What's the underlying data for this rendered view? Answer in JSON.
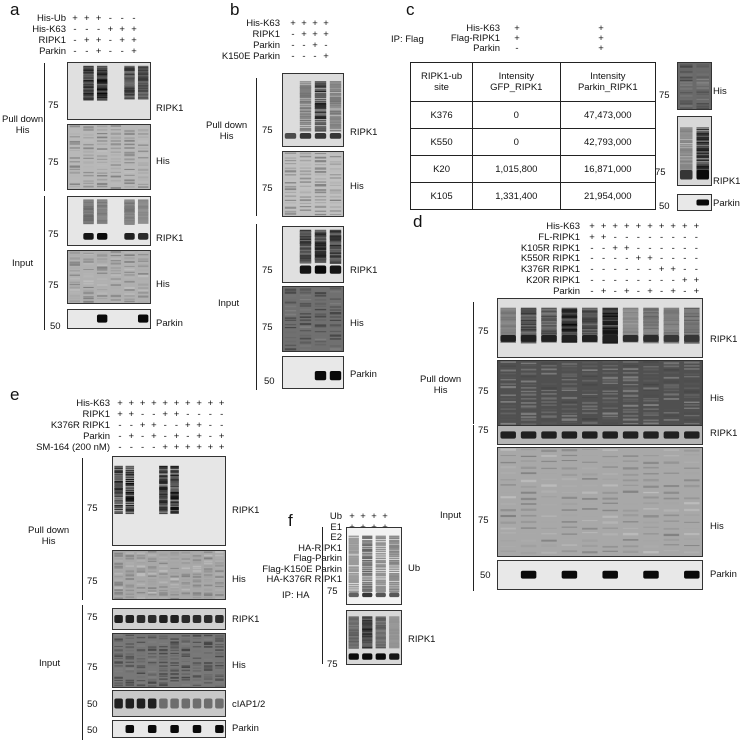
{
  "panels": {
    "a": {
      "letter": "a",
      "conditions": [
        {
          "label": "His-Ub",
          "signs": [
            "+",
            "+",
            "+",
            "-",
            "-",
            "-"
          ]
        },
        {
          "label": "His-K63",
          "signs": [
            "-",
            "-",
            "-",
            "+",
            "+",
            "+"
          ]
        },
        {
          "label": "RIPK1",
          "signs": [
            "-",
            "+",
            "+",
            "-",
            "+",
            "+"
          ]
        },
        {
          "label": "Parkin",
          "signs": [
            "-",
            "-",
            "+",
            "-",
            "-",
            "+"
          ]
        }
      ],
      "group_pulldown": "Pull down\nHis",
      "group_input": "Input",
      "blots": [
        "RIPK1",
        "His",
        "RIPK1",
        "His",
        "Parkin"
      ],
      "mw": [
        "75",
        "75",
        "75",
        "75",
        "50"
      ]
    },
    "b": {
      "letter": "b",
      "conditions": [
        {
          "label": "His-K63",
          "signs": [
            "+",
            "+",
            "+",
            "+"
          ]
        },
        {
          "label": "RIPK1",
          "signs": [
            "-",
            "+",
            "+",
            "+"
          ]
        },
        {
          "label": "Parkin",
          "signs": [
            "-",
            "-",
            "+",
            "-"
          ]
        },
        {
          "label": "K150E Parkin",
          "signs": [
            "-",
            "-",
            "-",
            "+"
          ]
        }
      ],
      "group_pulldown": "Pull down\nHis",
      "group_input": "Input",
      "blots": [
        "RIPK1",
        "His",
        "RIPK1",
        "His",
        "Parkin"
      ],
      "mw": [
        "75",
        "75",
        "75",
        "75",
        "50"
      ]
    },
    "c": {
      "letter": "c",
      "ip": "IP: Flag",
      "conditions": [
        {
          "label": "His-K63",
          "signs": [
            "+",
            "+"
          ]
        },
        {
          "label": "Flag-RIPK1",
          "signs": [
            "+",
            "+"
          ]
        },
        {
          "label": "Parkin",
          "signs": [
            "-",
            "+"
          ]
        }
      ],
      "table": {
        "headers": [
          "RIPK1-ub\nsite",
          "Intensity\nGFP_RIPK1",
          "Intensity\nParkin_RIPK1"
        ],
        "rows": [
          [
            "K376",
            "0",
            "47,473,000"
          ],
          [
            "K550",
            "0",
            "42,793,000"
          ],
          [
            "K20",
            "1,015,800",
            "16,871,000"
          ],
          [
            "K105",
            "1,331,400",
            "21,954,000"
          ]
        ]
      },
      "blots": [
        "His",
        "RIPK1",
        "Parkin"
      ],
      "mw": [
        "75",
        "75",
        "50"
      ]
    },
    "d": {
      "letter": "d",
      "conditions": [
        {
          "label": "His-K63",
          "signs": [
            "+",
            "+",
            "+",
            "+",
            "+",
            "+",
            "+",
            "+",
            "+",
            "+"
          ]
        },
        {
          "label": "FL-RIPK1",
          "signs": [
            "+",
            "+",
            "-",
            "-",
            "-",
            "-",
            "-",
            "-",
            "-",
            "-"
          ]
        },
        {
          "label": "K105R RIPK1",
          "signs": [
            "-",
            "-",
            "+",
            "+",
            "-",
            "-",
            "-",
            "-",
            "-",
            "-"
          ]
        },
        {
          "label": "K550R RIPK1",
          "signs": [
            "-",
            "-",
            "-",
            "-",
            "+",
            "+",
            "-",
            "-",
            "-",
            "-"
          ]
        },
        {
          "label": "K376R RIPK1",
          "signs": [
            "-",
            "-",
            "-",
            "-",
            "-",
            "-",
            "+",
            "+",
            "-",
            "-"
          ]
        },
        {
          "label": "K20R RIPK1",
          "signs": [
            "-",
            "-",
            "-",
            "-",
            "-",
            "-",
            "-",
            "-",
            "+",
            "+"
          ]
        },
        {
          "label": "Parkin",
          "signs": [
            "-",
            "+",
            "-",
            "+",
            "-",
            "+",
            "-",
            "+",
            "-",
            "+"
          ]
        }
      ],
      "group_pulldown": "Pull down\nHis",
      "group_input": "Input",
      "blots": [
        "RIPK1",
        "His",
        "RIPK1",
        "His",
        "Parkin"
      ],
      "mw": [
        "75",
        "75",
        "75",
        "75",
        "50"
      ]
    },
    "e": {
      "letter": "e",
      "conditions": [
        {
          "label": "His-K63",
          "signs": [
            "+",
            "+",
            "+",
            "+",
            "+",
            "+",
            "+",
            "+",
            "+",
            "+"
          ]
        },
        {
          "label": "RIPK1",
          "signs": [
            "+",
            "+",
            "-",
            "-",
            "+",
            "+",
            "-",
            "-",
            "-",
            "-"
          ]
        },
        {
          "label": "K376R RIPK1",
          "signs": [
            "-",
            "-",
            "+",
            "+",
            "-",
            "-",
            "+",
            "+",
            "-",
            "-"
          ]
        },
        {
          "label": "Parkin",
          "signs": [
            "-",
            "+",
            "-",
            "+",
            "-",
            "+",
            "-",
            "+",
            "-",
            "+"
          ]
        },
        {
          "label": "SM-164 (200 nM)",
          "signs": [
            "-",
            "-",
            "-",
            "-",
            "+",
            "+",
            "+",
            "+",
            "+",
            "+"
          ]
        }
      ],
      "group_pulldown": "Pull down\nHis",
      "group_input": "Input",
      "blots": [
        "RIPK1",
        "His",
        "RIPK1",
        "His",
        "cIAP1/2",
        "Parkin"
      ],
      "mw": [
        "75",
        "75",
        "75",
        "75",
        "50",
        "50"
      ]
    },
    "f": {
      "letter": "f",
      "conditions": [
        {
          "label": "Ub",
          "signs": [
            "+",
            "+",
            "+",
            "+"
          ]
        },
        {
          "label": "E1",
          "signs": [
            "+",
            "+",
            "+",
            "+"
          ]
        },
        {
          "label": "E2",
          "signs": [
            "+",
            "+",
            "+",
            "+"
          ]
        },
        {
          "label": "HA-RIPK1",
          "signs": [
            "+",
            "+",
            "+",
            "-"
          ]
        },
        {
          "label": "Flag-Parkin",
          "signs": [
            "-",
            "+",
            "-",
            "+"
          ]
        },
        {
          "label": "Flag-K150E Parkin",
          "signs": [
            "-",
            "-",
            "+",
            "-"
          ]
        },
        {
          "label": "HA-K376R RIPK1",
          "signs": [
            "-",
            "-",
            "-",
            "+"
          ]
        }
      ],
      "ip": "IP: HA",
      "blots": [
        "Ub",
        "RIPK1"
      ],
      "mw": [
        "75",
        "75"
      ]
    }
  }
}
